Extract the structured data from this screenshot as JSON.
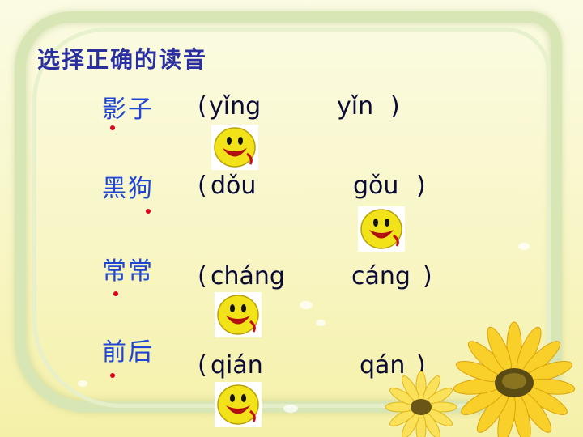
{
  "title": "选择正确的读音",
  "paren_open": "(",
  "paren_close": ")",
  "questions": [
    {
      "word": "影子",
      "option_a": "yǐng",
      "option_b": "yǐn"
    },
    {
      "word": "黑狗",
      "option_a": "dǒu",
      "option_b": "gǒu"
    },
    {
      "word": "常常",
      "option_a": "cháng",
      "option_b": "cáng"
    },
    {
      "word": "前后",
      "option_a": "qián",
      "option_b": "qán"
    }
  ],
  "icons": {
    "smiley": "smiley-face-icon",
    "flowers": "sunflower-decoration"
  },
  "colors": {
    "title": "#2a2fa0",
    "word": "#1f45d6",
    "dot": "#e0001b",
    "pinyin": "#0a0a35",
    "smiley": "#f2e21a"
  }
}
